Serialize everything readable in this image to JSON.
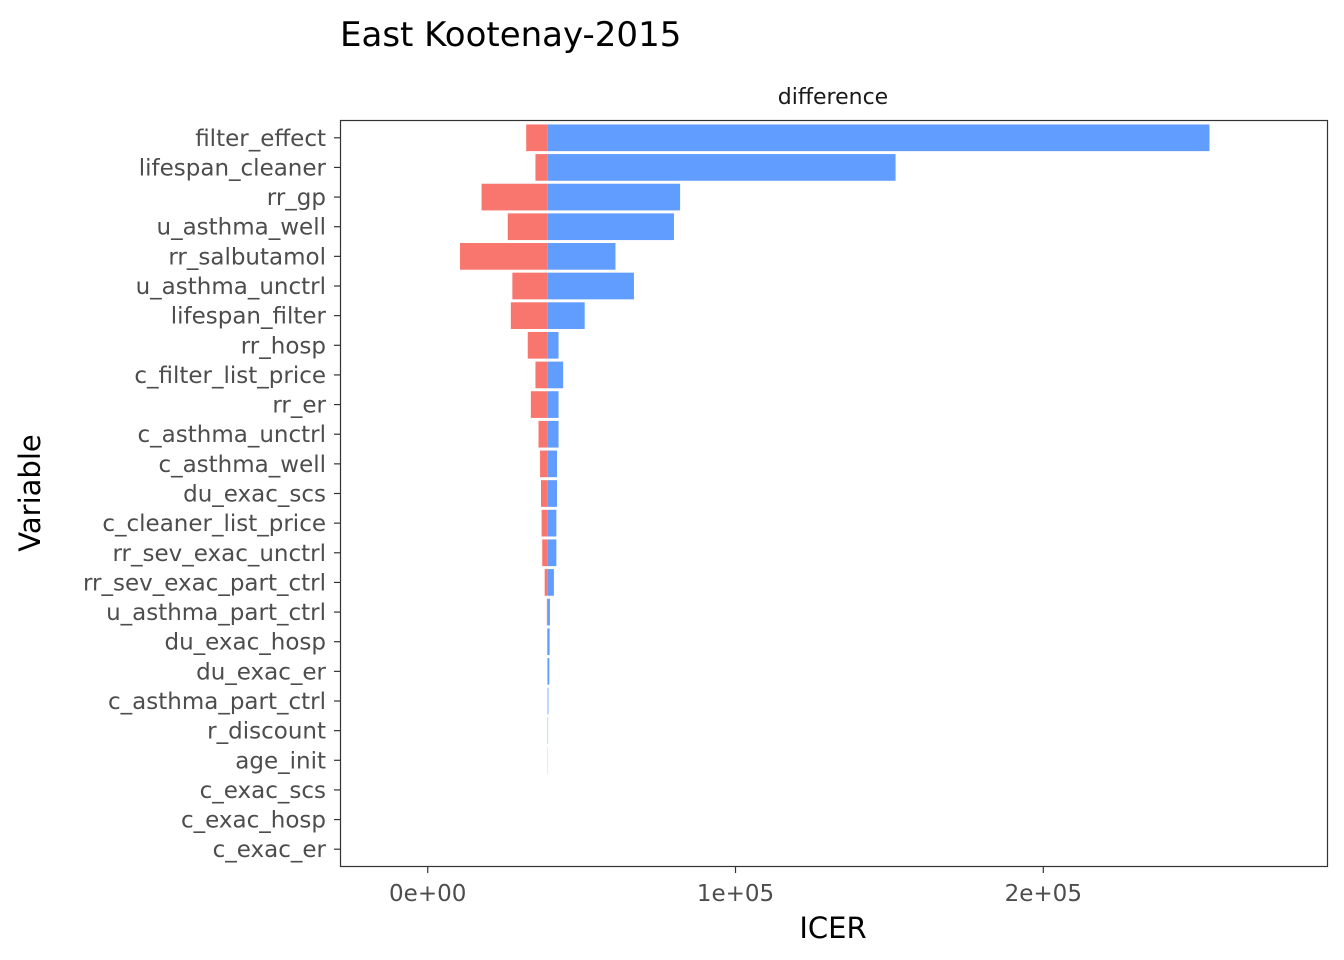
{
  "chart_data": {
    "type": "bar",
    "orientation": "horizontal",
    "title": "East Kootenay-2015",
    "facet_label": "difference",
    "xlabel": "ICER",
    "ylabel": "Variable",
    "xlim": [
      -28500,
      292500
    ],
    "base_value": 39000,
    "x_ticks": [
      0,
      100000,
      200000
    ],
    "x_tick_labels": [
      "0e+00",
      "1e+05",
      "2e+05"
    ],
    "categories": [
      "filter_effect",
      "lifespan_cleaner",
      "rr_gp",
      "u_asthma_well",
      "rr_salbutamol",
      "u_asthma_unctrl",
      "lifespan_filter",
      "rr_hosp",
      "c_filter_list_price",
      "rr_er",
      "c_asthma_unctrl",
      "c_asthma_well",
      "du_exac_scs",
      "c_cleaner_list_price",
      "rr_sev_exac_unctrl",
      "rr_sev_exac_part_ctrl",
      "u_asthma_part_ctrl",
      "du_exac_hosp",
      "du_exac_er",
      "c_asthma_part_ctrl",
      "r_discount",
      "age_init",
      "c_exac_scs",
      "c_exac_hosp",
      "c_exac_er"
    ],
    "series": [
      {
        "values": [
          32000,
          35000,
          17500,
          26000,
          10500,
          27500,
          27000,
          32500,
          35000,
          33500,
          36000,
          36500,
          36800,
          37000,
          37200,
          38000,
          38700,
          38800,
          38850,
          38900,
          38950,
          38980,
          39000,
          39000,
          39000
        ],
        "color": "#F8766D"
      },
      {
        "values": [
          254000,
          152000,
          82000,
          80000,
          61000,
          67000,
          51000,
          42500,
          44000,
          42500,
          42500,
          42000,
          42000,
          41800,
          41800,
          41000,
          39700,
          39600,
          39500,
          39200,
          39100,
          39050,
          39000,
          39000,
          39000
        ],
        "color": "#619CFF"
      }
    ],
    "grid": false,
    "legend": "none"
  }
}
